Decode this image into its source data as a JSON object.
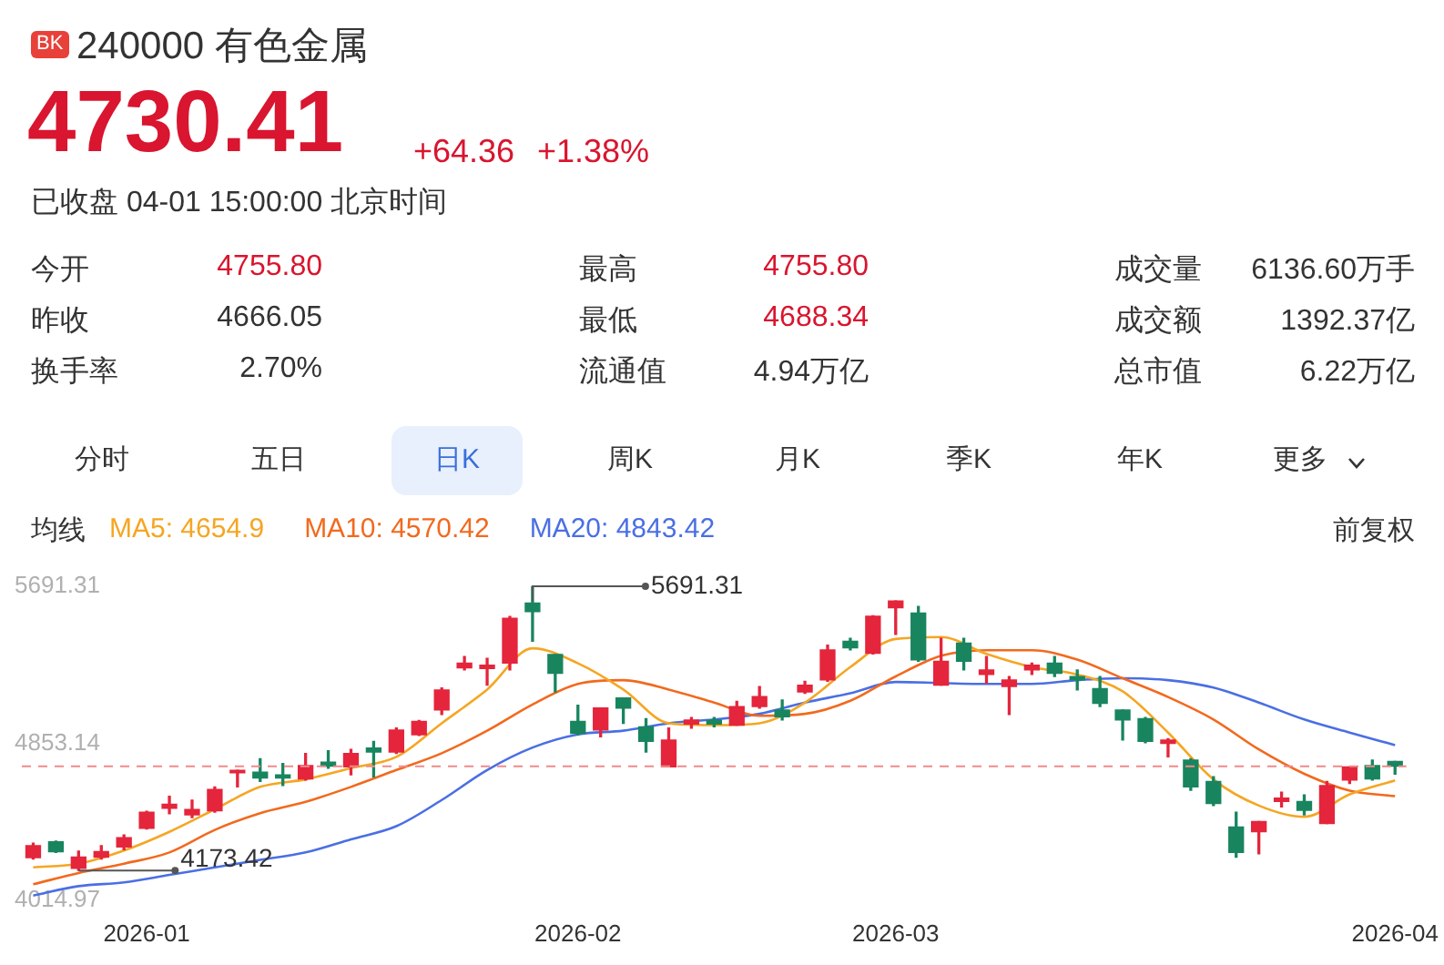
{
  "chart_data": [
    {
      "type": "other",
      "title": "240000 有色金属",
      "annotations": [
        "BK",
        "4730.41",
        "+64.36",
        "+1.38%",
        "已收盘 04-01 15:00:00 北京时间",
        "今开",
        "4755.80",
        "最高",
        "4755.80",
        "成交量",
        "6136.60万手",
        "昨收",
        "4666.05",
        "最低",
        "4688.34",
        "成交额",
        "1392.37亿",
        "换手率",
        "2.70%",
        "流通值",
        "4.94万亿",
        "总市值",
        "6.22万亿",
        "分时",
        "五日",
        "日K",
        "周K",
        "月K",
        "季K",
        "年K",
        "更多"
      ]
    },
    {
      "type": "candlestick",
      "legend": "top left",
      "categories": [
        null,
        null,
        null,
        null,
        null,
        "2026-01",
        null,
        null,
        null,
        null,
        null,
        null,
        null,
        null,
        null,
        null,
        null,
        null,
        null,
        null,
        null,
        null,
        null,
        null,
        "2026-02",
        null,
        null,
        null,
        null,
        null,
        null,
        null,
        null,
        null,
        null,
        null,
        null,
        null,
        "2026-03",
        null,
        null,
        null,
        null,
        null,
        null,
        null,
        null,
        null,
        null,
        null,
        null,
        null,
        null,
        null,
        null,
        null,
        null,
        null,
        null,
        null,
        "2026-04"
      ],
      "ohlc": [
        [
          4242,
          4320,
          4235,
          4306
        ],
        [
          4327,
          4330,
          4270,
          4274
        ],
        [
          4185,
          4277,
          4173.42,
          4245
        ],
        [
          4245,
          4306,
          4235,
          4274
        ],
        [
          4299,
          4363,
          4285,
          4349
        ],
        [
          4399,
          4490,
          4395,
          4485
        ],
        [
          4506,
          4570,
          4477,
          4527
        ],
        [
          4470,
          4549,
          4456,
          4499
        ],
        [
          4492,
          4620,
          4485,
          4606
        ],
        [
          4695,
          4709,
          4620,
          4709
        ],
        [
          4699,
          4770,
          4649,
          4667
        ],
        [
          4684,
          4745,
          4627,
          4667
        ],
        [
          4663,
          4799,
          4656,
          4734
        ],
        [
          4752,
          4813,
          4720,
          4731
        ],
        [
          4727,
          4820,
          4684,
          4799
        ],
        [
          4827,
          4863,
          4674,
          4806
        ],
        [
          4806,
          4934,
          4799,
          4924
        ],
        [
          4899,
          4975,
          4895,
          4970
        ],
        [
          5031,
          5149,
          5006,
          5138
        ],
        [
          5256,
          5316,
          5245,
          5281
        ],
        [
          5252,
          5306,
          5163,
          5270
        ],
        [
          5281,
          5530,
          5245,
          5520
        ],
        [
          5602,
          5691.31,
          5398,
          5556
        ],
        [
          5327,
          5327,
          5127,
          5227
        ],
        [
          4970,
          5056,
          4899,
          4906
        ],
        [
          4924,
          5041,
          4888,
          5041
        ],
        [
          5095,
          5095,
          4959,
          5041
        ],
        [
          4941,
          4984,
          4806,
          4863
        ],
        [
          4727,
          4934,
          4727,
          4870
        ],
        [
          4956,
          4991,
          4934,
          4977
        ],
        [
          4977,
          4991,
          4941,
          4956
        ],
        [
          4949,
          5077,
          4949,
          5049
        ],
        [
          5049,
          5156,
          5041,
          5102
        ],
        [
          5031,
          5084,
          4977,
          4995
        ],
        [
          5127,
          5184,
          5120,
          5163
        ],
        [
          5191,
          5377,
          5184,
          5352
        ],
        [
          5398,
          5413,
          5352,
          5363
        ],
        [
          5334,
          5534,
          5330,
          5531
        ],
        [
          5577,
          5613,
          5434,
          5613
        ],
        [
          5548,
          5584,
          5291,
          5298
        ],
        [
          5163,
          5413,
          5163,
          5291
        ],
        [
          5388,
          5413,
          5245,
          5291
        ],
        [
          5220,
          5316,
          5174,
          5245
        ],
        [
          5156,
          5209,
          5006,
          5191
        ],
        [
          5245,
          5281,
          5220,
          5270
        ],
        [
          5281,
          5316,
          5209,
          5227
        ],
        [
          5209,
          5245,
          5138,
          5191
        ],
        [
          5145,
          5209,
          5049,
          5066
        ],
        [
          5031,
          5031,
          4870,
          4977
        ],
        [
          4984,
          4991,
          4856,
          4863
        ],
        [
          4852,
          4877,
          4781,
          4870
        ],
        [
          4763,
          4770,
          4602,
          4620
        ],
        [
          4649,
          4674,
          4520,
          4531
        ],
        [
          4406,
          4485,
          4245,
          4270
        ],
        [
          4381,
          4435,
          4263,
          4435
        ],
        [
          4542,
          4592,
          4513,
          4560
        ],
        [
          4542,
          4577,
          4470,
          4495
        ],
        [
          4424,
          4649,
          4424,
          4627
        ],
        [
          4656,
          4727,
          4638,
          4727
        ],
        [
          4734,
          4763,
          4656,
          4663
        ],
        [
          4755.8,
          4755.8,
          4688.34,
          4730.41
        ]
      ],
      "colors": [
        "#e4253b",
        "#18855f",
        "#e4253b",
        "#e4253b",
        "#e4253b",
        "#e4253b",
        "#e4253b",
        "#e4253b",
        "#e4253b",
        "#e4253b",
        "#18855f",
        "#18855f",
        "#e4253b",
        "#18855f",
        "#e4253b",
        "#18855f",
        "#e4253b",
        "#e4253b",
        "#e4253b",
        "#e4253b",
        "#e4253b",
        "#e4253b",
        "#18855f",
        "#18855f",
        "#18855f",
        "#e4253b",
        "#18855f",
        "#18855f",
        "#e4253b",
        "#e4253b",
        "#18855f",
        "#e4253b",
        "#e4253b",
        "#18855f",
        "#e4253b",
        "#e4253b",
        "#18855f",
        "#e4253b",
        "#e4253b",
        "#18855f",
        "#e4253b",
        "#18855f",
        "#e4253b",
        "#e4253b",
        "#e4253b",
        "#18855f",
        "#18855f",
        "#18855f",
        "#18855f",
        "#18855f",
        "#e4253b",
        "#18855f",
        "#18855f",
        "#18855f",
        "#e4253b",
        "#e4253b",
        "#18855f",
        "#e4253b",
        "#e4253b",
        "#18855f",
        "#18855f"
      ],
      "series": [
        {
          "type": "line",
          "name": "MA5: 4654.9",
          "color": "#f5a623",
          "values": [
            4190,
            null,
            4210,
            null,
            4280,
            null,
            4380,
            null,
            4500,
            null,
            4620,
            null,
            4660,
            null,
            4720,
            null,
            4780,
            null,
            4960,
            null,
            5140,
            null,
            5360,
            null,
            5280,
            null,
            5140,
            null,
            4960,
            null,
            4950,
            null,
            4960,
            null,
            5070,
            null,
            5260,
            null,
            5410,
            null,
            5420,
            null,
            5330,
            null,
            5260,
            null,
            5220,
            null,
            5130,
            null,
            4910,
            null,
            4660,
            null,
            4520,
            null,
            4460,
            null,
            4580,
            null,
            4654.9
          ]
        },
        {
          "type": "line",
          "name": "MA10: 4570.42",
          "color": "#f2691e",
          "values": [
            4100,
            null,
            4160,
            null,
            4210,
            null,
            4270,
            null,
            4390,
            null,
            4480,
            null,
            4540,
            null,
            4620,
            null,
            4710,
            null,
            4800,
            null,
            4920,
            null,
            5060,
            null,
            5170,
            null,
            5190,
            null,
            5140,
            null,
            5070,
            null,
            5000,
            null,
            5010,
            null,
            5080,
            null,
            5210,
            null,
            5320,
            null,
            5350,
            null,
            5350,
            null,
            5300,
            null,
            5200,
            null,
            5100,
            null,
            4980,
            null,
            4820,
            null,
            4690,
            null,
            4600,
            null,
            4570.42
          ]
        },
        {
          "type": "line",
          "name": "MA20: 4843.42",
          "color": "#4a6fe3",
          "values": [
            4040,
            null,
            4090,
            null,
            4110,
            null,
            4150,
            null,
            4190,
            null,
            4230,
            null,
            4270,
            null,
            4340,
            null,
            4410,
            null,
            4550,
            null,
            4710,
            null,
            4830,
            null,
            4900,
            null,
            4920,
            null,
            4960,
            null,
            4980,
            null,
            5010,
            null,
            5070,
            null,
            5120,
            null,
            5180,
            null,
            null,
            null,
            5170,
            null,
            5170,
            null,
            5190,
            null,
            5200,
            null,
            5190,
            null,
            5150,
            null,
            5070,
            null,
            4980,
            null,
            4910,
            null,
            4843.42
          ]
        }
      ],
      "ylim": [
        4014.97,
        5691.31
      ],
      "yticks": [
        4014.97,
        4853.14,
        5691.31
      ],
      "ref_lines": [
        {
          "axis": "y",
          "value": 4730.41,
          "color": "#f08a8a",
          "line_style": "dashed"
        }
      ],
      "annotations": [
        "均线",
        "前复权",
        "5691.31",
        {
          "text": "4173.42",
          "y": 4173.42
        }
      ]
    }
  ]
}
